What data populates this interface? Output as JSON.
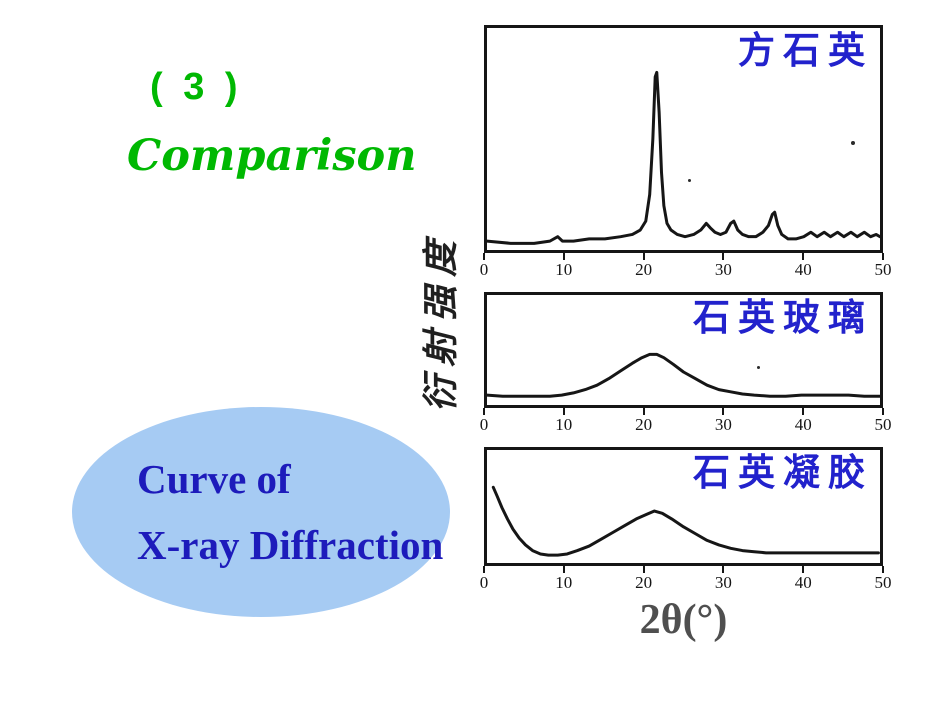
{
  "slide": {
    "heading_number": "( 3 )",
    "heading_word": "Comparison",
    "callout": {
      "line1": "Curve of",
      "line2": "X-ray Diffraction"
    },
    "y_axis_label": "衍射强度",
    "x_axis_label": "2θ(°)"
  },
  "colors": {
    "heading_green": "#00b802",
    "chart_title_blue": "#2222cc",
    "callout_blue": "#1d1bbb",
    "ellipse_fill": "#a6cbf3",
    "curve_ink": "#161616",
    "x_axis_label_gray": "#4f4f4f"
  },
  "chart_data": [
    {
      "type": "line",
      "title": "方石英",
      "xlabel": "2θ(°)",
      "ylabel": "衍射强度",
      "xlim": [
        0,
        50
      ],
      "ylim": [
        0,
        100
      ],
      "y_units": "relative intensity (unlabeled axis), % of panel height",
      "x_ticks": [
        0,
        10,
        20,
        30,
        40,
        50
      ],
      "main_peak_2theta": 21.6,
      "points": [
        [
          0,
          4
        ],
        [
          3,
          3
        ],
        [
          6,
          3
        ],
        [
          8,
          4
        ],
        [
          9,
          6
        ],
        [
          9.6,
          4
        ],
        [
          11,
          4
        ],
        [
          13,
          5
        ],
        [
          15,
          5
        ],
        [
          17,
          6
        ],
        [
          18.5,
          7
        ],
        [
          19.5,
          9
        ],
        [
          20.2,
          13
        ],
        [
          20.7,
          25
        ],
        [
          21.1,
          50
        ],
        [
          21.4,
          78
        ],
        [
          21.6,
          80
        ],
        [
          21.9,
          62
        ],
        [
          22.2,
          35
        ],
        [
          22.5,
          20
        ],
        [
          22.9,
          12
        ],
        [
          23.4,
          9
        ],
        [
          24.2,
          7
        ],
        [
          25.2,
          6
        ],
        [
          26.3,
          7
        ],
        [
          27.2,
          9
        ],
        [
          27.9,
          12
        ],
        [
          28.4,
          10
        ],
        [
          29,
          8
        ],
        [
          29.7,
          7
        ],
        [
          30.4,
          8
        ],
        [
          31,
          12
        ],
        [
          31.4,
          13
        ],
        [
          31.9,
          9
        ],
        [
          32.5,
          7
        ],
        [
          33.3,
          6
        ],
        [
          34.2,
          6
        ],
        [
          35.1,
          8
        ],
        [
          35.8,
          11
        ],
        [
          36.3,
          16
        ],
        [
          36.6,
          17
        ],
        [
          37,
          11
        ],
        [
          37.5,
          7
        ],
        [
          38.3,
          5
        ],
        [
          39.3,
          5
        ],
        [
          40.3,
          6
        ],
        [
          41.2,
          8
        ],
        [
          42,
          6
        ],
        [
          42.9,
          8
        ],
        [
          43.7,
          6
        ],
        [
          44.6,
          8
        ],
        [
          45.4,
          6
        ],
        [
          46.3,
          8
        ],
        [
          47.1,
          6
        ],
        [
          48,
          8
        ],
        [
          48.8,
          6
        ],
        [
          49.5,
          7
        ],
        [
          50,
          6
        ]
      ]
    },
    {
      "type": "line",
      "title": "石英玻璃",
      "xlabel": "2θ(°)",
      "ylabel": "衍射强度",
      "xlim": [
        0,
        50
      ],
      "ylim": [
        0,
        100
      ],
      "y_units": "relative intensity (unlabeled axis), % of panel height",
      "x_ticks": [
        0,
        10,
        20,
        30,
        40,
        50
      ],
      "main_peak_2theta": 21.5,
      "points": [
        [
          0,
          9
        ],
        [
          2,
          8
        ],
        [
          4,
          8
        ],
        [
          6,
          8
        ],
        [
          8,
          8
        ],
        [
          9.5,
          9
        ],
        [
          11,
          11
        ],
        [
          12.5,
          14
        ],
        [
          14,
          18
        ],
        [
          15.5,
          24
        ],
        [
          17,
          31
        ],
        [
          18.5,
          38
        ],
        [
          19.7,
          43
        ],
        [
          20.7,
          46
        ],
        [
          21.6,
          46
        ],
        [
          22.5,
          43
        ],
        [
          23.7,
          37
        ],
        [
          25,
          30
        ],
        [
          26.5,
          24
        ],
        [
          28,
          18
        ],
        [
          29.5,
          14
        ],
        [
          31,
          12
        ],
        [
          32.5,
          10
        ],
        [
          34,
          9
        ],
        [
          36,
          8
        ],
        [
          38,
          8
        ],
        [
          40,
          9
        ],
        [
          42,
          9
        ],
        [
          44,
          9
        ],
        [
          46,
          9
        ],
        [
          48,
          8
        ],
        [
          50,
          8
        ]
      ]
    },
    {
      "type": "line",
      "title": "石英凝胶",
      "xlabel": "2θ(°)",
      "ylabel": "衍射强度",
      "xlim": [
        0,
        50
      ],
      "ylim": [
        0,
        100
      ],
      "y_units": "relative intensity (unlabeled axis), % of panel height",
      "x_ticks": [
        0,
        10,
        20,
        30,
        40,
        50
      ],
      "main_peak_2theta": 21.3,
      "points": [
        [
          0.8,
          67
        ],
        [
          1.3,
          59
        ],
        [
          1.9,
          49
        ],
        [
          2.6,
          39
        ],
        [
          3.3,
          30
        ],
        [
          4.1,
          22
        ],
        [
          4.9,
          16
        ],
        [
          5.8,
          11
        ],
        [
          6.8,
          8
        ],
        [
          7.8,
          7
        ],
        [
          9,
          7
        ],
        [
          10.2,
          8
        ],
        [
          11.5,
          11
        ],
        [
          13,
          15
        ],
        [
          14.5,
          21
        ],
        [
          16,
          27
        ],
        [
          17.5,
          33
        ],
        [
          19,
          39
        ],
        [
          20.3,
          43
        ],
        [
          21.3,
          46
        ],
        [
          22.3,
          44
        ],
        [
          23.5,
          39
        ],
        [
          25,
          32
        ],
        [
          26.5,
          26
        ],
        [
          28,
          20
        ],
        [
          29.5,
          16
        ],
        [
          31,
          13
        ],
        [
          32.5,
          11
        ],
        [
          34,
          10
        ],
        [
          35.5,
          9
        ],
        [
          37,
          9
        ],
        [
          39,
          9
        ],
        [
          41,
          9
        ],
        [
          43,
          9
        ],
        [
          45,
          9
        ],
        [
          47,
          9
        ],
        [
          49,
          9
        ],
        [
          49.8,
          9
        ]
      ]
    }
  ]
}
